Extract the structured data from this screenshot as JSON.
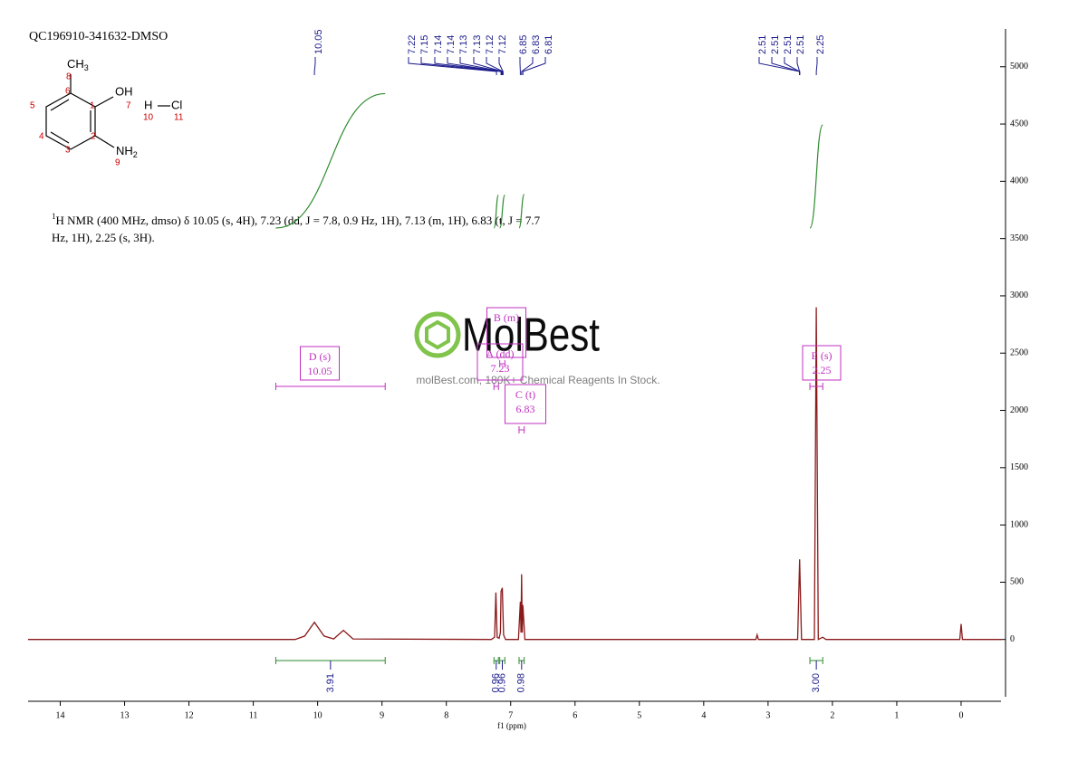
{
  "sample_id": "QC196910-341632-DMSO",
  "structure": {
    "methyl": {
      "text": "CH",
      "sub": "3"
    },
    "hydroxyl": "OH",
    "amine": {
      "text": "NH",
      "sub": "2"
    },
    "hydrogen": "H",
    "chlorine": "Cl",
    "atom_numbers": [
      "1",
      "2",
      "3",
      "4",
      "5",
      "6",
      "7",
      "8",
      "9",
      "10",
      "11"
    ]
  },
  "description": {
    "sup": "1",
    "lines": [
      "H NMR (400 MHz, dmso) δ 10.05 (s, 4H), 7.23 (dd, J = 7.8, 0.9 Hz, 1H), 7.13 (m, 1H), 6.83 (t, J = 7.7",
      "Hz, 1H), 2.25 (s, 3H)."
    ]
  },
  "watermark": {
    "logo": "MolBest",
    "tagline": "molBest.com, 180K+ Chemical Reagents In Stock."
  },
  "chart_data": {
    "type": "nmr",
    "xlabel": "f1 (ppm)",
    "color": "#8b1a1a",
    "xlim": [
      14.5,
      -0.62
    ],
    "ylim": [
      -500,
      5330
    ],
    "xticks": [
      14,
      13,
      12,
      11,
      10,
      9,
      8,
      7,
      6,
      5,
      4,
      3,
      2,
      1,
      0
    ],
    "yticks": [
      0,
      500,
      1000,
      1500,
      2000,
      2500,
      3000,
      3500,
      4000,
      4500,
      5000
    ],
    "x": [
      14.5,
      10.35,
      10.2,
      10.1,
      10.05,
      10.0,
      9.9,
      9.75,
      9.68,
      9.6,
      9.52,
      9.45,
      7.3,
      7.25,
      7.23,
      7.21,
      7.18,
      7.16,
      7.15,
      7.13,
      7.11,
      7.08,
      6.88,
      6.85,
      6.84,
      6.83,
      6.82,
      6.81,
      6.78,
      3.19,
      3.17,
      3.15,
      2.54,
      2.51,
      2.48,
      2.28,
      2.25,
      2.22,
      2.15,
      2.1,
      0.02,
      0.0,
      -0.02,
      -0.62
    ],
    "values": [
      0,
      0,
      30,
      110,
      150,
      110,
      30,
      5,
      40,
      80,
      40,
      5,
      0,
      20,
      410,
      20,
      10,
      60,
      420,
      450,
      40,
      0,
      0,
      330,
      60,
      570,
      60,
      300,
      0,
      0,
      40,
      0,
      0,
      700,
      0,
      0,
      2900,
      0,
      20,
      0,
      0,
      135,
      0,
      0
    ],
    "peak_labels": [
      10.05,
      7.22,
      7.15,
      7.14,
      7.14,
      7.13,
      7.13,
      7.12,
      7.12,
      6.85,
      6.83,
      6.81,
      2.51,
      2.51,
      2.51,
      2.51,
      2.25
    ],
    "peak_label_color": "#1c1c8c",
    "integrals": {
      "color": "#2e8b2e",
      "ranges": [
        [
          10.65,
          8.95
        ],
        [
          7.26,
          7.19
        ],
        [
          7.17,
          7.09
        ],
        [
          6.87,
          6.79
        ],
        [
          2.35,
          2.15
        ]
      ],
      "values": [
        3.91,
        0.96,
        0.96,
        0.98,
        3
      ],
      "value_labels": [
        "3.91",
        "0.96",
        "0.96",
        "0.98",
        "3.00"
      ]
    },
    "multiplet_color": "#c030c0",
    "multiplets": [
      {
        "label": "A (dd)",
        "shift": 7.23,
        "range": [
          7.26,
          7.19
        ]
      },
      {
        "label": "B (m)",
        "range": [
          7.17,
          7.09
        ]
      },
      {
        "label": "C (t)",
        "shift": 6.83,
        "range": [
          6.87,
          6.79
        ]
      },
      {
        "label": "D (s)",
        "shift": 10.05,
        "range": [
          10.65,
          8.95
        ]
      },
      {
        "label": "E (s)",
        "shift": 2.25,
        "range": [
          2.35,
          2.15
        ]
      }
    ]
  }
}
